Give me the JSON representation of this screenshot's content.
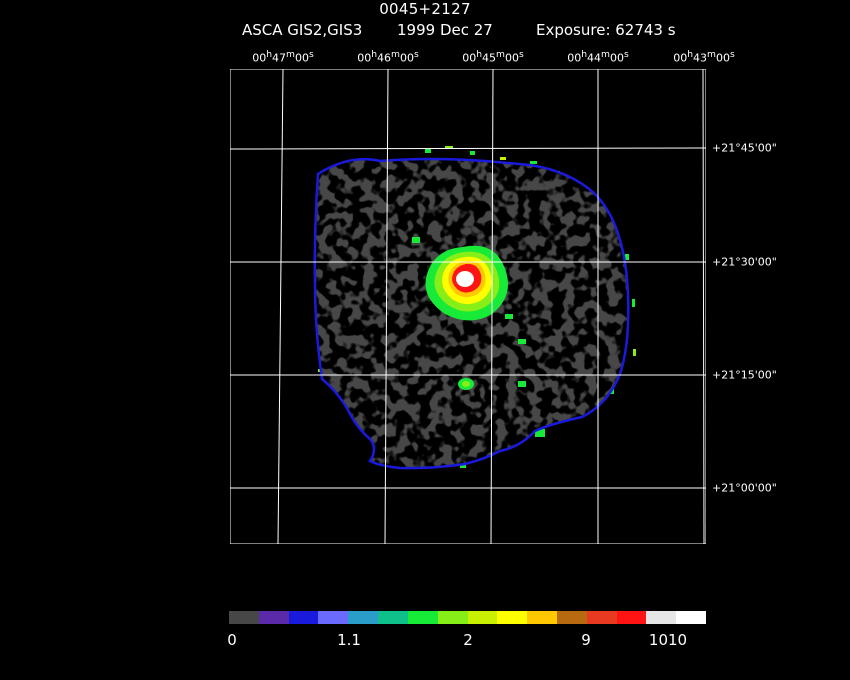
{
  "header": {
    "target": "0045+2127",
    "instrument": "ASCA GIS2,GIS3",
    "date": "1999 Dec 27",
    "exposure": "Exposure: 62743 s"
  },
  "axes": {
    "ra_labels": [
      {
        "h": "00",
        "m": "47",
        "s": "00"
      },
      {
        "h": "00",
        "m": "46",
        "s": "00"
      },
      {
        "h": "00",
        "m": "45",
        "s": "00"
      },
      {
        "h": "00",
        "m": "44",
        "s": "00"
      },
      {
        "h": "00",
        "m": "43",
        "s": "00"
      }
    ],
    "dec_labels": [
      "+21°45'00\"",
      "+21°30'00\"",
      "+21°15'00\"",
      "+21°00'00\""
    ]
  },
  "colorbar": {
    "colors": [
      "#474747",
      "#5a2aa8",
      "#1a1adc",
      "#6a6aff",
      "#2a9ec8",
      "#10c08a",
      "#18ea38",
      "#88ee18",
      "#c8f000",
      "#ffff00",
      "#ffc800",
      "#b86a10",
      "#e83a20",
      "#ff1414",
      "#e6e6e6",
      "#ffffff"
    ],
    "tick_labels": [
      "0",
      "1.1",
      "2",
      "9",
      "1010"
    ]
  }
}
